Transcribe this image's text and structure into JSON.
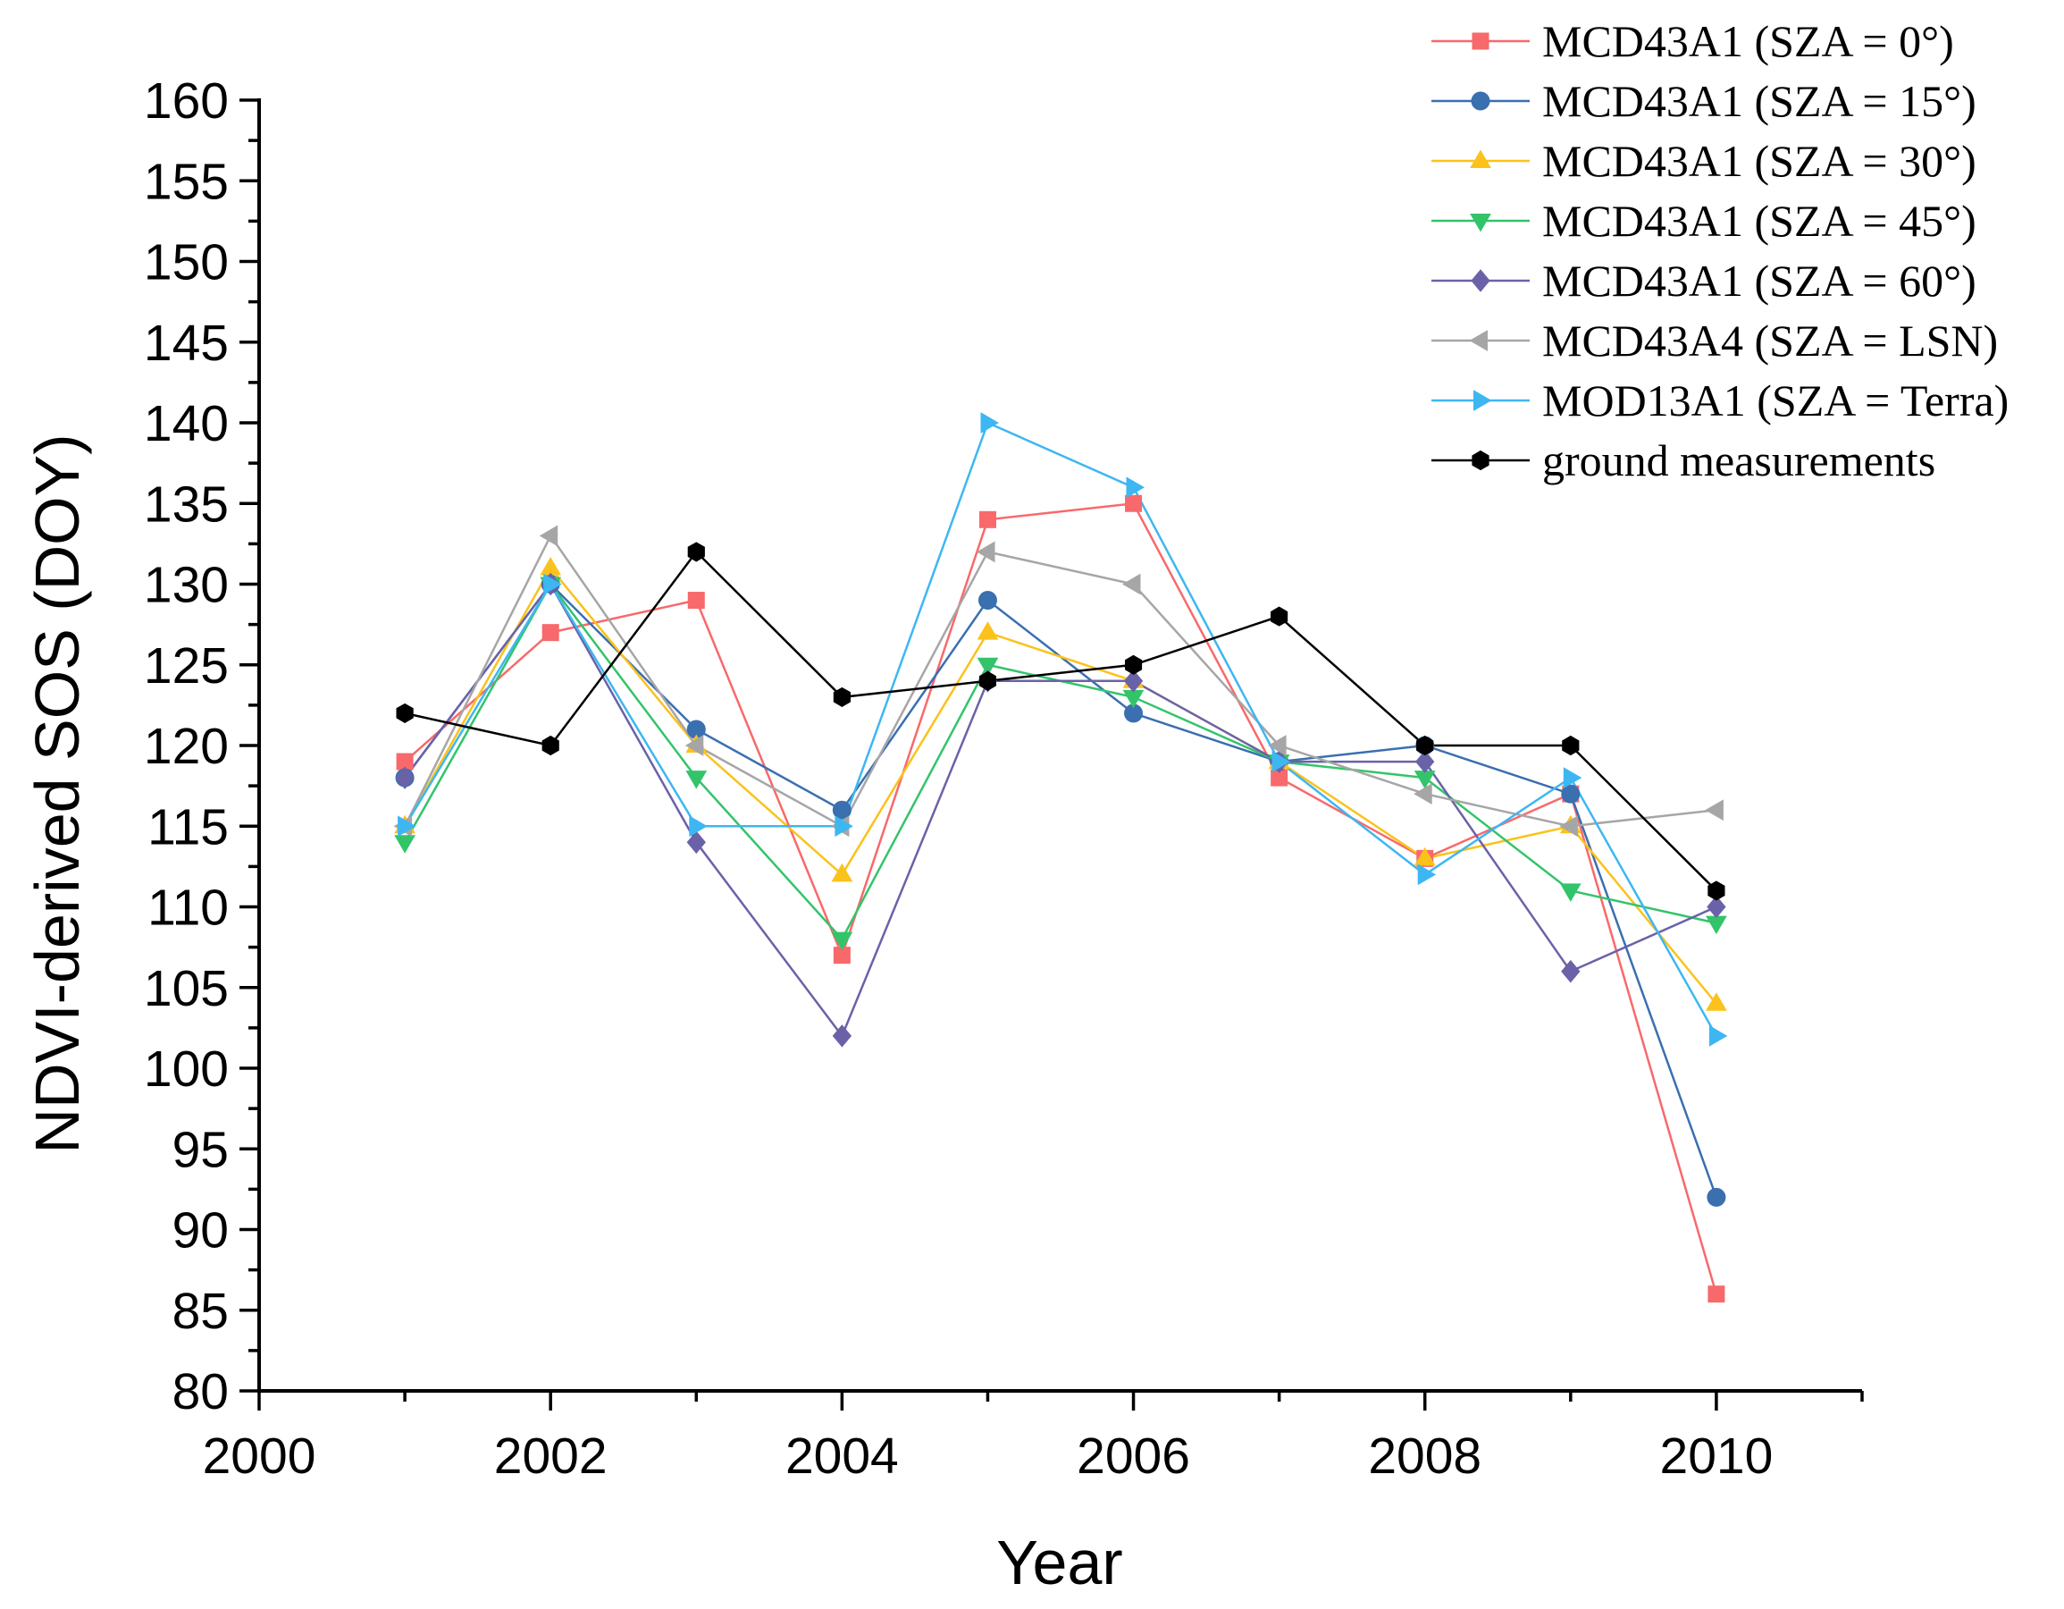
{
  "chart_data": {
    "type": "line",
    "title": "",
    "xlabel": "Year",
    "ylabel": "NDVI-derived SOS (DOY)",
    "xlim": [
      2000,
      2011
    ],
    "ylim": [
      80,
      160
    ],
    "xticks": [
      2000,
      2002,
      2004,
      2006,
      2008,
      2010
    ],
    "yticks": [
      80,
      85,
      90,
      95,
      100,
      105,
      110,
      115,
      120,
      125,
      130,
      135,
      140,
      145,
      150,
      155,
      160
    ],
    "grid": false,
    "legend_position": "top-right",
    "x": [
      2001,
      2002,
      2003,
      2004,
      2005,
      2006,
      2007,
      2008,
      2009,
      2010
    ],
    "series": [
      {
        "name": "MCD43A1 (SZA = 0°)",
        "color": "#f8696b",
        "marker": "square",
        "values": [
          119,
          127,
          129,
          107,
          134,
          135,
          118,
          113,
          117,
          86
        ]
      },
      {
        "name": "MCD43A1 (SZA = 15°)",
        "color": "#3a6fb0",
        "marker": "circle",
        "values": [
          118,
          130,
          121,
          116,
          129,
          122,
          119,
          120,
          117,
          92
        ]
      },
      {
        "name": "MCD43A1 (SZA = 30°)",
        "color": "#fbc21b",
        "marker": "triangle-up",
        "values": [
          115,
          131,
          120,
          112,
          127,
          124,
          119,
          113,
          115,
          104
        ]
      },
      {
        "name": "MCD43A1 (SZA = 45°)",
        "color": "#33c46a",
        "marker": "triangle-down",
        "values": [
          114,
          130,
          118,
          108,
          125,
          123,
          119,
          118,
          111,
          109
        ]
      },
      {
        "name": "MCD43A1 (SZA = 60°)",
        "color": "#6a62a8",
        "marker": "diamond",
        "values": [
          118,
          130,
          114,
          102,
          124,
          124,
          119,
          119,
          106,
          110
        ]
      },
      {
        "name": "MCD43A4 (SZA = LSN)",
        "color": "#a6a6a6",
        "marker": "triangle-left",
        "values": [
          115,
          133,
          120,
          115,
          132,
          130,
          120,
          117,
          115,
          116
        ]
      },
      {
        "name": "MOD13A1 (SZA = Terra)",
        "color": "#3db7f2",
        "marker": "triangle-right",
        "values": [
          115,
          130,
          115,
          115,
          140,
          136,
          119,
          112,
          118,
          102
        ]
      },
      {
        "name": "ground measurements",
        "color": "#000000",
        "marker": "hexagon",
        "values": [
          122,
          120,
          132,
          123,
          124,
          125,
          128,
          120,
          120,
          111
        ]
      }
    ]
  }
}
